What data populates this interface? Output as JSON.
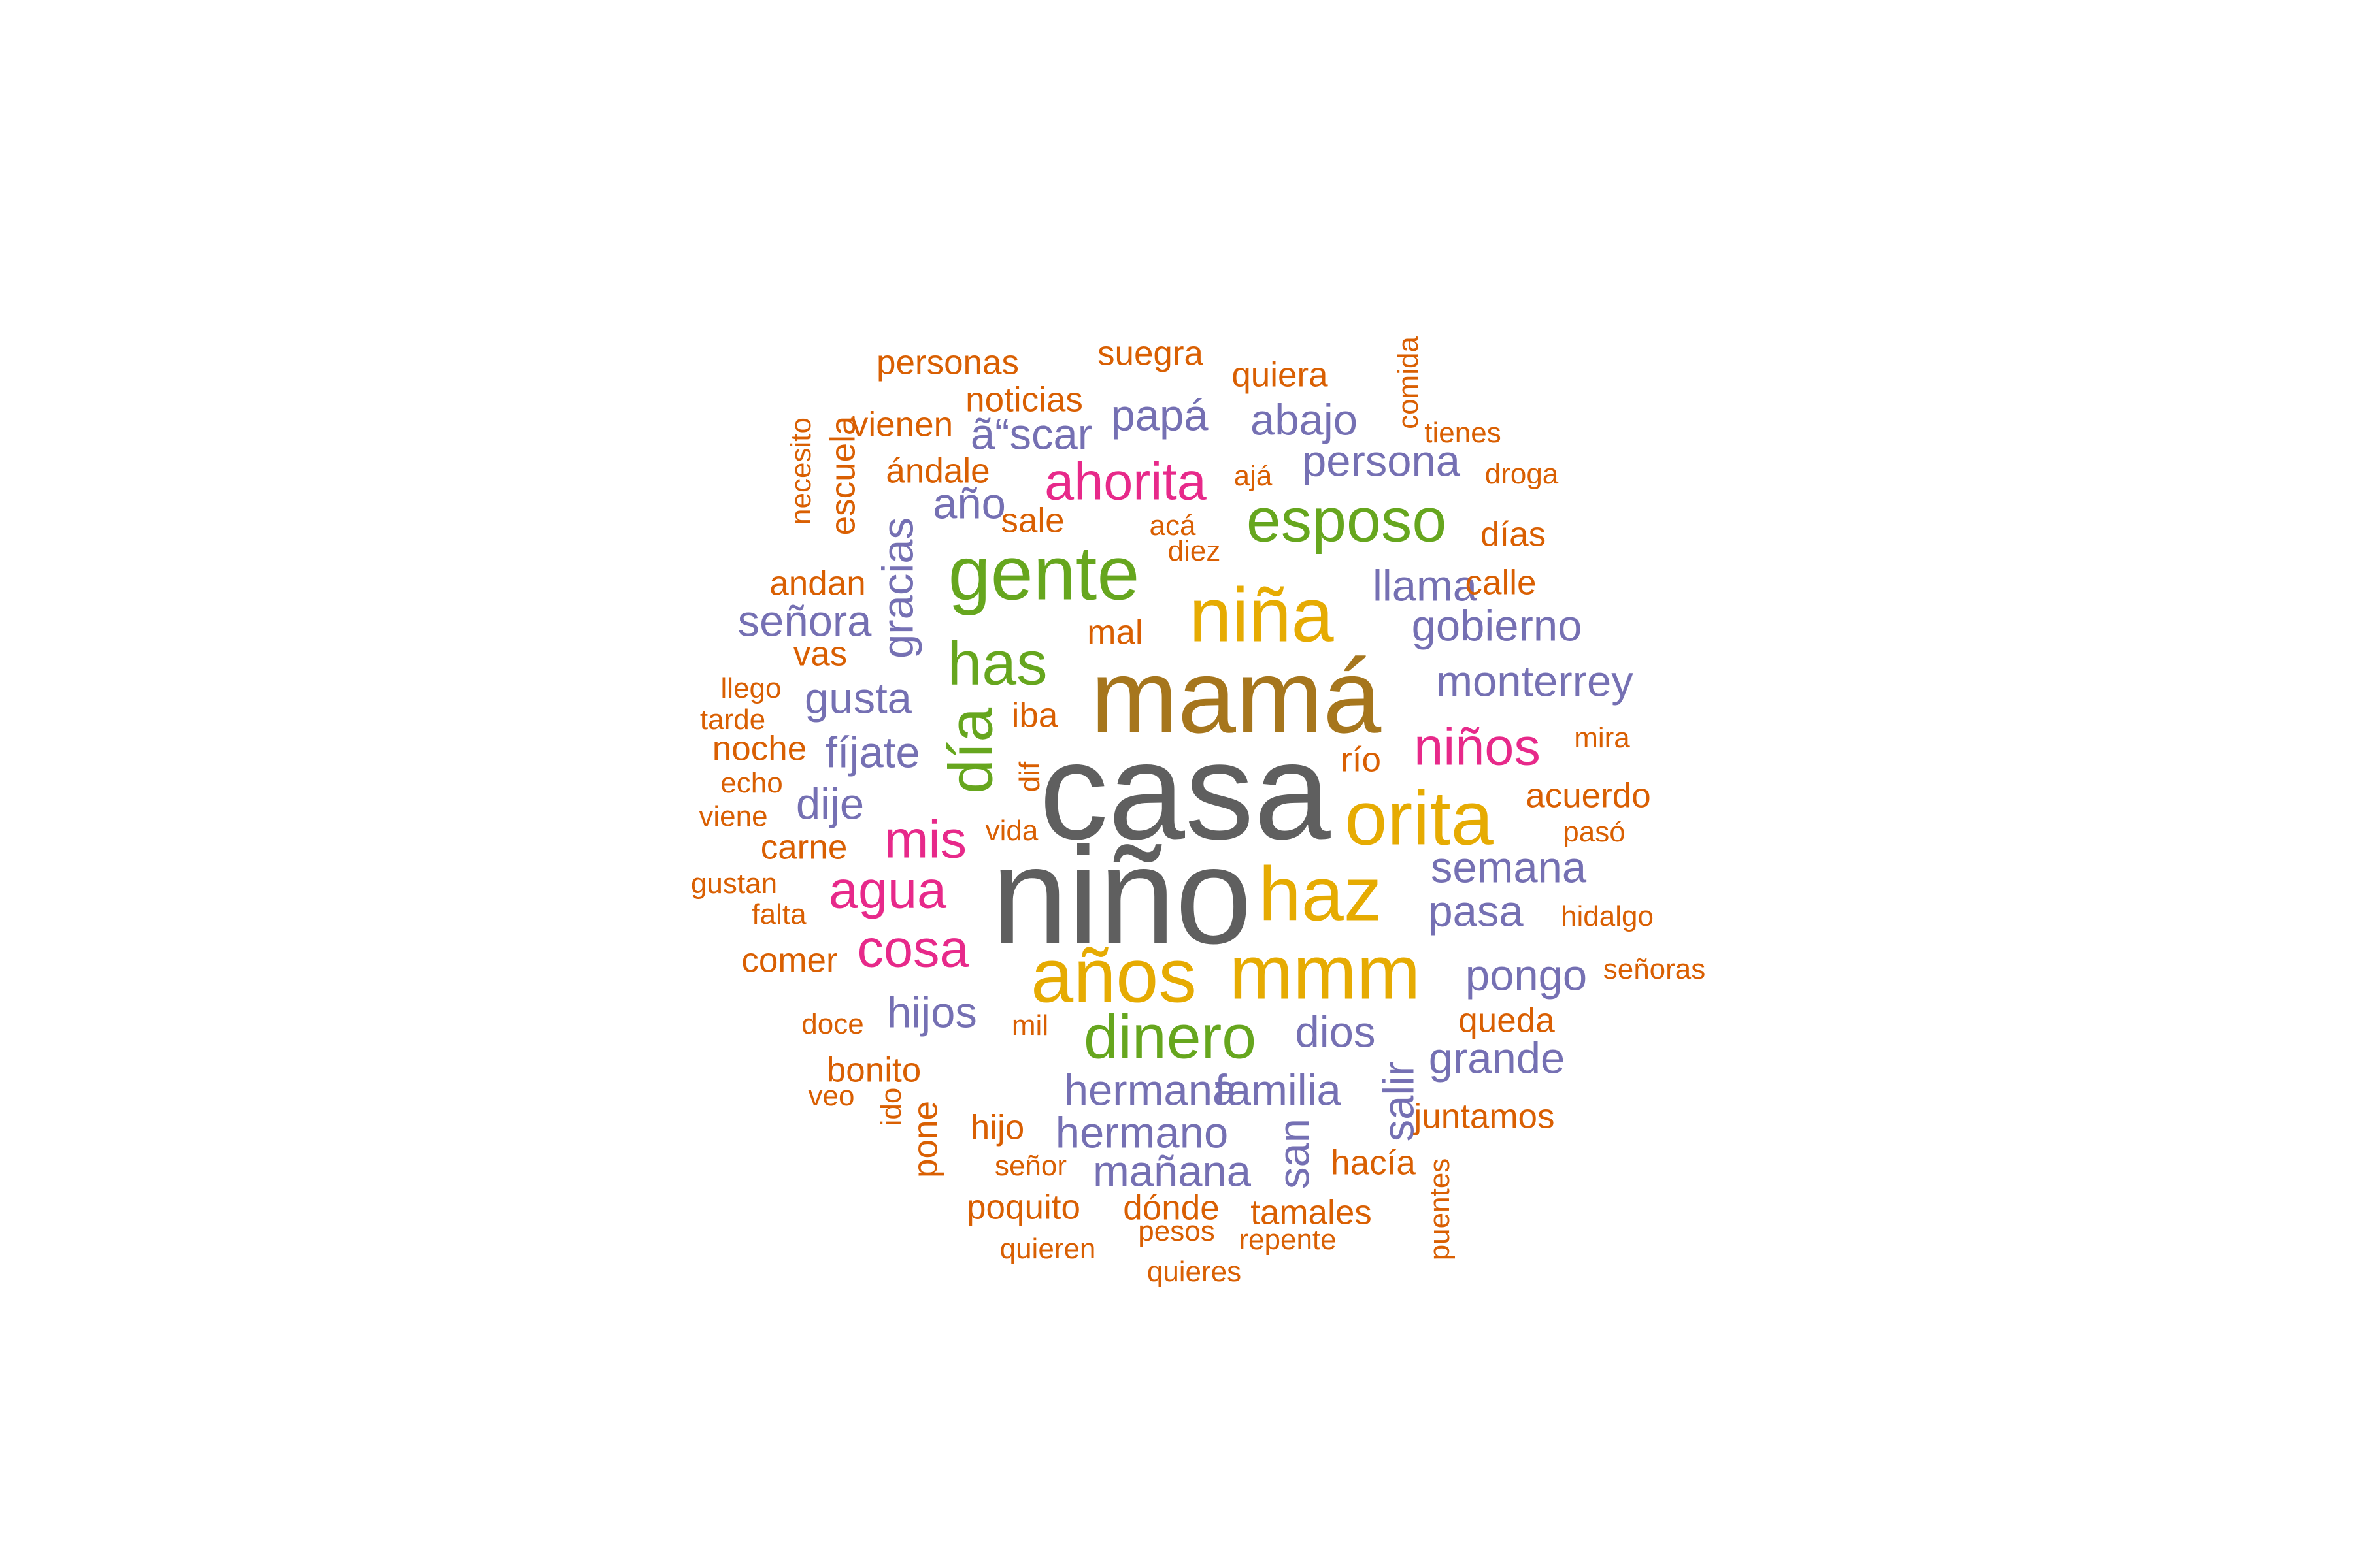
{
  "palette": {
    "gray": "#5f5f5f",
    "brown": "#a6761d",
    "gold": "#e6ab02",
    "green": "#66a61e",
    "pink": "#e7298a",
    "purple": "#7570b3",
    "orange": "#d95f02"
  },
  "words": [
    {
      "text": "casa",
      "color": "gray",
      "tier": 1,
      "vertical": false
    },
    {
      "text": "niño",
      "color": "gray",
      "tier": 1,
      "vertical": false
    },
    {
      "text": "mamá",
      "color": "brown",
      "tier": 2,
      "vertical": false
    },
    {
      "text": "niña",
      "color": "gold",
      "tier": 3,
      "vertical": false
    },
    {
      "text": "haz",
      "color": "gold",
      "tier": 3,
      "vertical": false
    },
    {
      "text": "años",
      "color": "gold",
      "tier": 3,
      "vertical": false
    },
    {
      "text": "mmm",
      "color": "gold",
      "tier": 3,
      "vertical": false
    },
    {
      "text": "orita",
      "color": "gold",
      "tier": 3,
      "vertical": false
    },
    {
      "text": "gente",
      "color": "green",
      "tier": 3,
      "vertical": false
    },
    {
      "text": "esposo",
      "color": "green",
      "tier": 4,
      "vertical": false
    },
    {
      "text": "has",
      "color": "green",
      "tier": 4,
      "vertical": false
    },
    {
      "text": "día",
      "color": "green",
      "tier": 4,
      "vertical": true
    },
    {
      "text": "dinero",
      "color": "green",
      "tier": 4,
      "vertical": false
    },
    {
      "text": "ahorita",
      "color": "pink",
      "tier": 5,
      "vertical": false
    },
    {
      "text": "niños",
      "color": "pink",
      "tier": 5,
      "vertical": false
    },
    {
      "text": "mis",
      "color": "pink",
      "tier": 5,
      "vertical": false
    },
    {
      "text": "agua",
      "color": "pink",
      "tier": 5,
      "vertical": false
    },
    {
      "text": "cosa",
      "color": "pink",
      "tier": 5,
      "vertical": false
    },
    {
      "text": "persona",
      "color": "purple",
      "tier": 6,
      "vertical": false
    },
    {
      "text": "abajo",
      "color": "purple",
      "tier": 6,
      "vertical": false
    },
    {
      "text": "papá",
      "color": "purple",
      "tier": 6,
      "vertical": false
    },
    {
      "text": "ã“scar",
      "color": "purple",
      "tier": 6,
      "vertical": false
    },
    {
      "text": "año",
      "color": "purple",
      "tier": 6,
      "vertical": false
    },
    {
      "text": "llama",
      "color": "purple",
      "tier": 6,
      "vertical": false
    },
    {
      "text": "gobierno",
      "color": "purple",
      "tier": 6,
      "vertical": false
    },
    {
      "text": "monterrey",
      "color": "purple",
      "tier": 6,
      "vertical": false
    },
    {
      "text": "señora",
      "color": "purple",
      "tier": 6,
      "vertical": false
    },
    {
      "text": "gracias",
      "color": "purple",
      "tier": 6,
      "vertical": true
    },
    {
      "text": "gusta",
      "color": "purple",
      "tier": 6,
      "vertical": false
    },
    {
      "text": "fíjate",
      "color": "purple",
      "tier": 6,
      "vertical": false
    },
    {
      "text": "dije",
      "color": "purple",
      "tier": 6,
      "vertical": false
    },
    {
      "text": "semana",
      "color": "purple",
      "tier": 6,
      "vertical": false
    },
    {
      "text": "pasa",
      "color": "purple",
      "tier": 6,
      "vertical": false
    },
    {
      "text": "pongo",
      "color": "purple",
      "tier": 6,
      "vertical": false
    },
    {
      "text": "hijos",
      "color": "purple",
      "tier": 6,
      "vertical": false
    },
    {
      "text": "dios",
      "color": "purple",
      "tier": 6,
      "vertical": false
    },
    {
      "text": "grande",
      "color": "purple",
      "tier": 6,
      "vertical": false
    },
    {
      "text": "hermana",
      "color": "purple",
      "tier": 6,
      "vertical": false
    },
    {
      "text": "familia",
      "color": "purple",
      "tier": 6,
      "vertical": false
    },
    {
      "text": "salir",
      "color": "purple",
      "tier": 6,
      "vertical": true
    },
    {
      "text": "hermano",
      "color": "purple",
      "tier": 6,
      "vertical": false
    },
    {
      "text": "san",
      "color": "purple",
      "tier": 6,
      "vertical": true
    },
    {
      "text": "mañana",
      "color": "purple",
      "tier": 6,
      "vertical": false
    },
    {
      "text": "personas",
      "color": "orange",
      "tier": 7,
      "vertical": false
    },
    {
      "text": "suegra",
      "color": "orange",
      "tier": 7,
      "vertical": false
    },
    {
      "text": "quiera",
      "color": "orange",
      "tier": 7,
      "vertical": false
    },
    {
      "text": "comida",
      "color": "orange",
      "tier": 8,
      "vertical": true
    },
    {
      "text": "noticias",
      "color": "orange",
      "tier": 7,
      "vertical": false
    },
    {
      "text": "vienen",
      "color": "orange",
      "tier": 7,
      "vertical": false
    },
    {
      "text": "tienes",
      "color": "orange",
      "tier": 8,
      "vertical": false
    },
    {
      "text": "necesito",
      "color": "orange",
      "tier": 8,
      "vertical": true
    },
    {
      "text": "escuela",
      "color": "orange",
      "tier": 7,
      "vertical": true
    },
    {
      "text": "ándale",
      "color": "orange",
      "tier": 7,
      "vertical": false
    },
    {
      "text": "ajá",
      "color": "orange",
      "tier": 8,
      "vertical": false
    },
    {
      "text": "droga",
      "color": "orange",
      "tier": 8,
      "vertical": false
    },
    {
      "text": "sale",
      "color": "orange",
      "tier": 7,
      "vertical": false
    },
    {
      "text": "acá",
      "color": "orange",
      "tier": 8,
      "vertical": false
    },
    {
      "text": "días",
      "color": "orange",
      "tier": 7,
      "vertical": false
    },
    {
      "text": "diez",
      "color": "orange",
      "tier": 8,
      "vertical": false
    },
    {
      "text": "andan",
      "color": "orange",
      "tier": 7,
      "vertical": false
    },
    {
      "text": "calle",
      "color": "orange",
      "tier": 7,
      "vertical": false
    },
    {
      "text": "mal",
      "color": "orange",
      "tier": 7,
      "vertical": false
    },
    {
      "text": "vas",
      "color": "orange",
      "tier": 7,
      "vertical": false
    },
    {
      "text": "llego",
      "color": "orange",
      "tier": 8,
      "vertical": false
    },
    {
      "text": "tarde",
      "color": "orange",
      "tier": 8,
      "vertical": false
    },
    {
      "text": "iba",
      "color": "orange",
      "tier": 7,
      "vertical": false
    },
    {
      "text": "noche",
      "color": "orange",
      "tier": 7,
      "vertical": false
    },
    {
      "text": "mira",
      "color": "orange",
      "tier": 8,
      "vertical": false
    },
    {
      "text": "río",
      "color": "orange",
      "tier": 7,
      "vertical": false
    },
    {
      "text": "echo",
      "color": "orange",
      "tier": 8,
      "vertical": false
    },
    {
      "text": "dif",
      "color": "orange",
      "tier": 8,
      "vertical": true
    },
    {
      "text": "acuerdo",
      "color": "orange",
      "tier": 7,
      "vertical": false
    },
    {
      "text": "viene",
      "color": "orange",
      "tier": 8,
      "vertical": false
    },
    {
      "text": "vida",
      "color": "orange",
      "tier": 8,
      "vertical": false
    },
    {
      "text": "pasó",
      "color": "orange",
      "tier": 8,
      "vertical": false
    },
    {
      "text": "carne",
      "color": "orange",
      "tier": 7,
      "vertical": false
    },
    {
      "text": "gustan",
      "color": "orange",
      "tier": 8,
      "vertical": false
    },
    {
      "text": "falta",
      "color": "orange",
      "tier": 8,
      "vertical": false
    },
    {
      "text": "hidalgo",
      "color": "orange",
      "tier": 8,
      "vertical": false
    },
    {
      "text": "comer",
      "color": "orange",
      "tier": 7,
      "vertical": false
    },
    {
      "text": "señoras",
      "color": "orange",
      "tier": 8,
      "vertical": false
    },
    {
      "text": "doce",
      "color": "orange",
      "tier": 8,
      "vertical": false
    },
    {
      "text": "mil",
      "color": "orange",
      "tier": 8,
      "vertical": false
    },
    {
      "text": "queda",
      "color": "orange",
      "tier": 7,
      "vertical": false
    },
    {
      "text": "bonito",
      "color": "orange",
      "tier": 7,
      "vertical": false
    },
    {
      "text": "veo",
      "color": "orange",
      "tier": 8,
      "vertical": false
    },
    {
      "text": "ido",
      "color": "orange",
      "tier": 8,
      "vertical": true
    },
    {
      "text": "hijo",
      "color": "orange",
      "tier": 7,
      "vertical": false
    },
    {
      "text": "pone",
      "color": "orange",
      "tier": 7,
      "vertical": true
    },
    {
      "text": "juntamos",
      "color": "orange",
      "tier": 7,
      "vertical": false
    },
    {
      "text": "señor",
      "color": "orange",
      "tier": 8,
      "vertical": false
    },
    {
      "text": "hacía",
      "color": "orange",
      "tier": 7,
      "vertical": false
    },
    {
      "text": "puentes",
      "color": "orange",
      "tier": 8,
      "vertical": true
    },
    {
      "text": "poquito",
      "color": "orange",
      "tier": 7,
      "vertical": false
    },
    {
      "text": "dónde",
      "color": "orange",
      "tier": 7,
      "vertical": false
    },
    {
      "text": "tamales",
      "color": "orange",
      "tier": 7,
      "vertical": false
    },
    {
      "text": "pesos",
      "color": "orange",
      "tier": 8,
      "vertical": false
    },
    {
      "text": "repente",
      "color": "orange",
      "tier": 8,
      "vertical": false
    },
    {
      "text": "quieren",
      "color": "orange",
      "tier": 8,
      "vertical": false
    },
    {
      "text": "quieres",
      "color": "orange",
      "tier": 8,
      "vertical": false
    }
  ]
}
